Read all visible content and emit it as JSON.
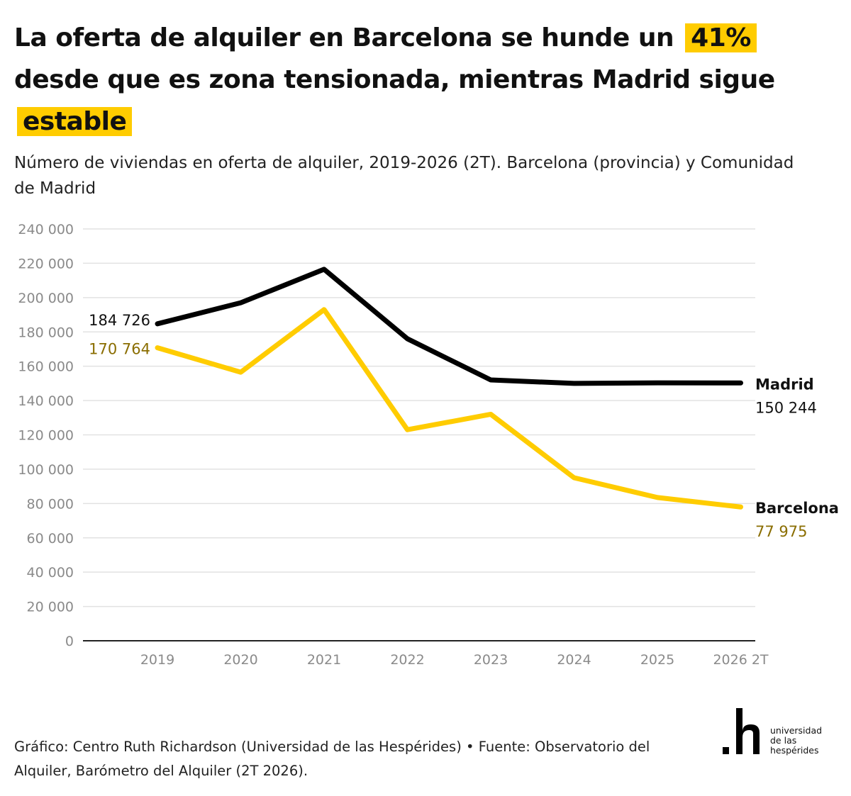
{
  "title": {
    "part1": "La oferta de alquiler en Barcelona se hunde un",
    "highlight1": "41%",
    "part2": "desde que es zona tensionada, mientras Madrid sigue",
    "highlight2": "estable"
  },
  "subtitle": "Número de viviendas en oferta de alquiler, 2019-2026 (2T). Barcelona (provincia) y Comunidad de Madrid",
  "colors": {
    "madrid": "#000000",
    "barcelona": "#ffcc00",
    "barcelona_label": "#8a6d00",
    "grid": "#e2e2e2",
    "highlight": "#ffcc00"
  },
  "chart_data": {
    "type": "line",
    "x": [
      "2019",
      "2020",
      "2021",
      "2022",
      "2023",
      "2024",
      "2025",
      "2026 2T"
    ],
    "y_ticks": [
      "0",
      "20 000",
      "40 000",
      "60 000",
      "80 000",
      "100 000",
      "120 000",
      "140 000",
      "160 000",
      "180 000",
      "200 000",
      "220 000",
      "240 000"
    ],
    "ylim": [
      0,
      240000
    ],
    "grid": true,
    "series": [
      {
        "name": "Madrid",
        "values": [
          184726,
          197000,
          216500,
          176000,
          152000,
          150000,
          150300,
          150244
        ],
        "start_label": "184 726",
        "end_label": "150 244"
      },
      {
        "name": "Barcelona",
        "values": [
          170764,
          156500,
          193000,
          123000,
          132000,
          95000,
          83500,
          77975
        ],
        "start_label": "170 764",
        "end_label": "77 975"
      }
    ]
  },
  "footer": "Gráfico: Centro Ruth Richardson (Universidad de las Hespérides) • Fuente: Observatorio del Alquiler, Barómetro del Alquiler (2T 2026).",
  "logo": {
    "line1": "universidad",
    "line2": "de las",
    "line3": "hespérides"
  }
}
